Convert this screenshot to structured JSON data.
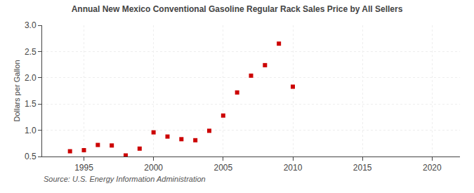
{
  "chart_data": {
    "type": "scatter",
    "title": "Annual New Mexico Conventional Gasoline Regular Rack Sales Price by All Sellers",
    "y_label": "Dollars per Gallon",
    "annotations": [
      "Source: U.S. Energy Information Administration"
    ],
    "x": [
      1994,
      1995,
      1996,
      1997,
      1998,
      1999,
      2000,
      2001,
      2002,
      2003,
      2004,
      2005,
      2006,
      2007,
      2008,
      2009,
      2010
    ],
    "values": [
      0.6,
      0.62,
      0.72,
      0.71,
      0.52,
      0.65,
      0.96,
      0.88,
      0.83,
      0.81,
      0.99,
      1.28,
      1.72,
      2.04,
      2.24,
      2.65,
      1.83
    ],
    "color": "#cc0000",
    "marker": "square",
    "xlim": [
      1992,
      2022
    ],
    "ylim": [
      0.5,
      3.0
    ],
    "xticks": [
      1995,
      2000,
      2005,
      2010,
      2015,
      2020
    ],
    "yticks": [
      0.5,
      {
        "value": 1.0,
        "label": "1.0"
      },
      1.5,
      {
        "value": 2.0,
        "label": "2.0"
      },
      2.5,
      {
        "value": 3.0,
        "label": "3.0"
      }
    ],
    "grid": true
  }
}
